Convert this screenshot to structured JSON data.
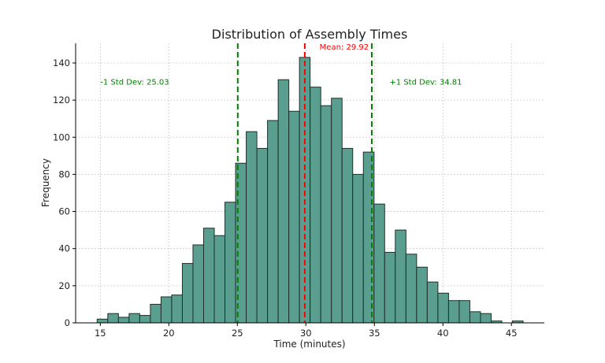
{
  "chart_data": {
    "type": "bar",
    "title": "Distribution of Assembly Times",
    "xlabel": "Time (minutes)",
    "ylabel": "Frequency",
    "xlim": [
      13.2,
      47.4
    ],
    "ylim": [
      0,
      150.6
    ],
    "xticks": [
      15,
      20,
      25,
      30,
      35,
      40,
      45
    ],
    "yticks": [
      0,
      20,
      40,
      60,
      80,
      100,
      120,
      140
    ],
    "grid": true,
    "bin_start": 14.77,
    "bin_width": 0.777,
    "values": [
      2,
      5,
      3,
      5,
      4,
      10,
      14,
      15,
      32,
      42,
      51,
      47,
      65,
      86,
      103,
      94,
      109,
      131,
      114,
      143,
      127,
      117,
      121,
      94,
      80,
      92,
      64,
      38,
      50,
      37,
      30,
      22,
      16,
      12,
      12,
      6,
      5,
      1,
      0,
      1
    ],
    "bar_color": "#5a9e90",
    "lines": [
      {
        "x": 29.92,
        "color": "#ff0000",
        "label": "Mean: 29.92",
        "label_x": 31.0,
        "label_y": 149
      },
      {
        "x": 25.03,
        "color": "#008000",
        "label": "-1 Std Dev: 25.03",
        "label_x": 15.0,
        "label_y": 130
      },
      {
        "x": 34.81,
        "color": "#008000",
        "label": "+1 Std Dev: 34.81",
        "label_x": 36.1,
        "label_y": 130
      }
    ]
  }
}
